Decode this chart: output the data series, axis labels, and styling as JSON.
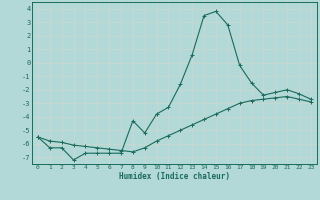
{
  "xlabel": "Humidex (Indice chaleur)",
  "background_color": "#b2d8d8",
  "grid_color": "#c8d8d0",
  "line_color": "#1a6b5a",
  "xlim": [
    -0.5,
    23.5
  ],
  "ylim": [
    -7.5,
    4.5
  ],
  "xticks": [
    0,
    1,
    2,
    3,
    4,
    5,
    6,
    7,
    8,
    9,
    10,
    11,
    12,
    13,
    14,
    15,
    16,
    17,
    18,
    19,
    20,
    21,
    22,
    23
  ],
  "yticks": [
    -7,
    -6,
    -5,
    -4,
    -3,
    -2,
    -1,
    0,
    1,
    2,
    3,
    4
  ],
  "curve1_x": [
    0,
    1,
    2,
    3,
    4,
    5,
    6,
    7,
    8,
    9,
    10,
    11,
    12,
    13,
    14,
    15,
    16,
    17,
    18,
    19,
    20,
    21,
    22,
    23
  ],
  "curve1_y": [
    -5.5,
    -6.3,
    -6.3,
    -7.2,
    -6.7,
    -6.7,
    -6.7,
    -6.7,
    -4.3,
    -5.2,
    -3.8,
    -3.3,
    -1.6,
    0.6,
    3.5,
    3.8,
    2.8,
    -0.2,
    -1.5,
    -2.4,
    -2.2,
    -2.0,
    -2.3,
    -2.7
  ],
  "curve2_x": [
    0,
    1,
    2,
    3,
    4,
    5,
    6,
    7,
    8,
    9,
    10,
    11,
    12,
    13,
    14,
    15,
    16,
    17,
    18,
    19,
    20,
    21,
    22,
    23
  ],
  "curve2_y": [
    -5.5,
    -5.8,
    -5.9,
    -6.1,
    -6.2,
    -6.3,
    -6.4,
    -6.5,
    -6.6,
    -6.3,
    -5.8,
    -5.4,
    -5.0,
    -4.6,
    -4.2,
    -3.8,
    -3.4,
    -3.0,
    -2.8,
    -2.7,
    -2.6,
    -2.5,
    -2.7,
    -2.9
  ]
}
